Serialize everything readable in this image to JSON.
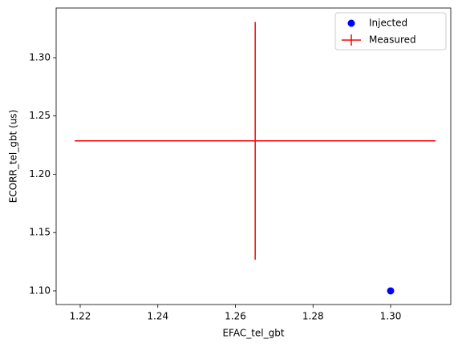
{
  "chart_data": {
    "type": "errorbar-scatter",
    "x_label": "EFAC_tel_gbt",
    "y_label": "ECORR_tel_gbt (us)",
    "xlim": [
      1.2138,
      1.3155
    ],
    "ylim": [
      1.0883,
      1.3426
    ],
    "xticks": [
      {
        "value": 1.22,
        "label": "1.22"
      },
      {
        "value": 1.24,
        "label": "1.24"
      },
      {
        "value": 1.26,
        "label": "1.26"
      },
      {
        "value": 1.28,
        "label": "1.28"
      },
      {
        "value": 1.3,
        "label": "1.30"
      }
    ],
    "yticks": [
      {
        "value": 1.1,
        "label": "1.10"
      },
      {
        "value": 1.15,
        "label": "1.15"
      },
      {
        "value": 1.2,
        "label": "1.20"
      },
      {
        "value": 1.25,
        "label": "1.25"
      },
      {
        "value": 1.3,
        "label": "1.30"
      }
    ],
    "legend": "upper right",
    "series": [
      {
        "name": "Injected",
        "kind": "scatter",
        "color": "#0000ff",
        "x": [
          1.3
        ],
        "values": [
          1.1
        ]
      },
      {
        "name": "Measured",
        "kind": "errorbar",
        "color": "#ff0000",
        "x": [
          1.2651
        ],
        "values": [
          1.2287
        ],
        "xerr": [
          0.0465
        ],
        "yerr": [
          0.102
        ]
      }
    ]
  }
}
